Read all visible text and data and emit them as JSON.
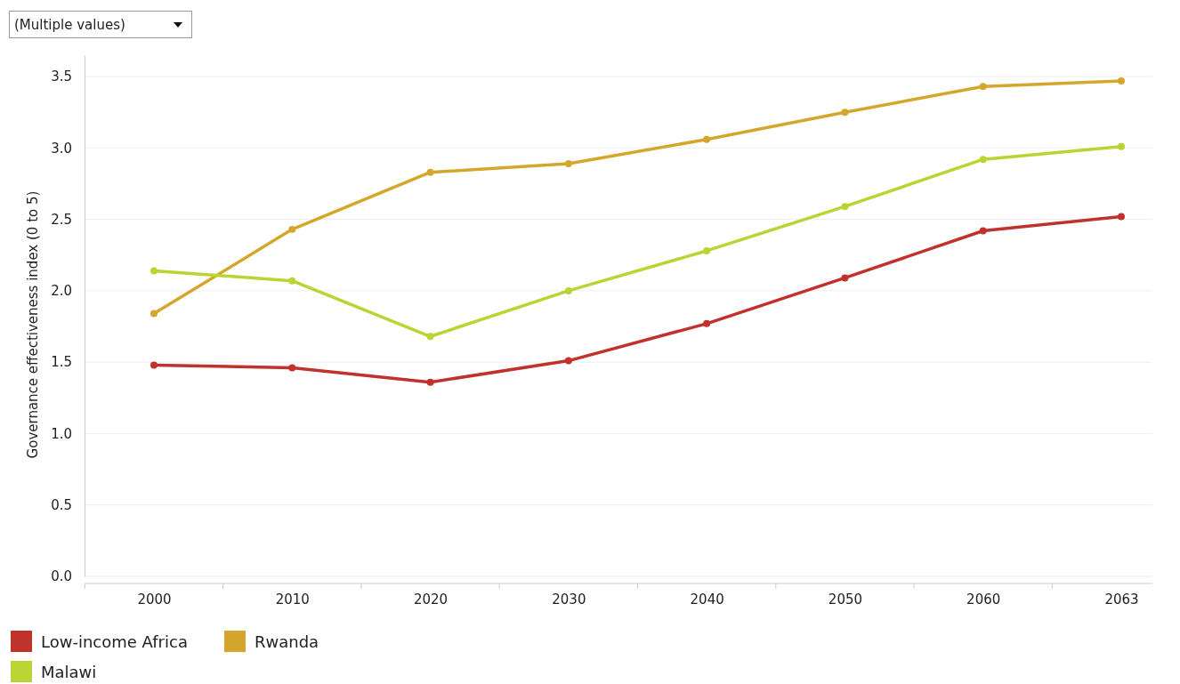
{
  "chart_data": {
    "type": "line",
    "ylabel": "Governance effectiveness index (0 to 5)",
    "annotations": [
      "(Multiple values)"
    ],
    "categories": [
      "2000",
      "2010",
      "2020",
      "2030",
      "2040",
      "2050",
      "2060",
      "2063"
    ],
    "series": [
      {
        "name": "Low-income Africa",
        "color": "#c0322b",
        "values": [
          1.48,
          1.46,
          1.36,
          1.51,
          1.77,
          2.09,
          2.42,
          2.52
        ]
      },
      {
        "name": "Rwanda",
        "color": "#d4a72c",
        "values": [
          1.84,
          2.43,
          2.83,
          2.89,
          3.06,
          3.25,
          3.43,
          3.47
        ]
      },
      {
        "name": "Malawi",
        "color": "#b9d433",
        "values": [
          2.14,
          2.07,
          1.68,
          2.0,
          2.28,
          2.59,
          2.92,
          3.01
        ]
      }
    ],
    "ylim": [
      0,
      3.65
    ],
    "yticks": [
      {
        "value": 0,
        "label": "0.0"
      },
      {
        "value": 0.5,
        "label": "0.5"
      },
      {
        "value": 1,
        "label": "1.0"
      },
      {
        "value": 1.5,
        "label": "1.5"
      },
      {
        "value": 2,
        "label": "2.0"
      },
      {
        "value": 2.5,
        "label": "2.5"
      },
      {
        "value": 3,
        "label": "3.0"
      },
      {
        "value": 3.5,
        "label": "3.5"
      }
    ],
    "grid": "y",
    "legend": "bottom left",
    "marker": "circle",
    "line_style": "solid"
  }
}
